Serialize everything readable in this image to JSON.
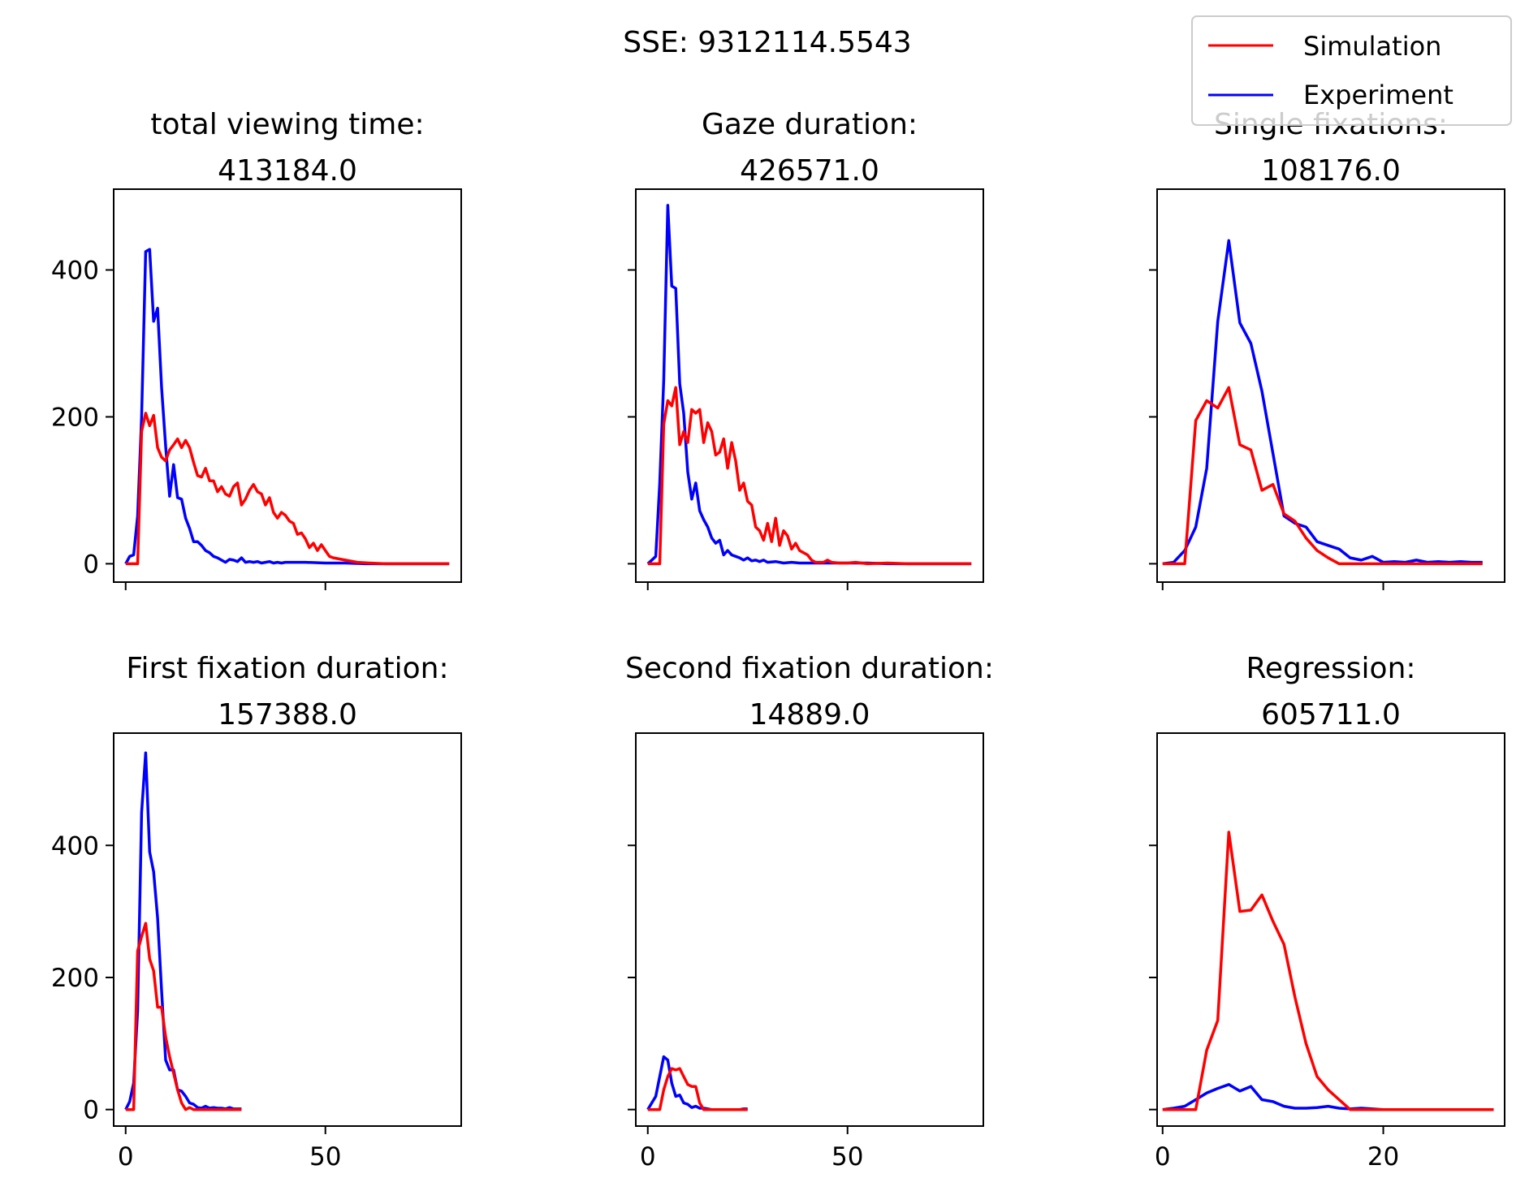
{
  "figure": {
    "suptitle": "SSE: 9312114.5543"
  },
  "legend": {
    "placement": "top-right",
    "entries": [
      {
        "label": "Simulation",
        "color": "#ff0000"
      },
      {
        "label": "Experiment",
        "color": "#0000ff"
      }
    ]
  },
  "chart_data": [
    {
      "type": "line",
      "title": "total viewing time:\n413184.0",
      "xlim": [
        -3,
        84
      ],
      "ylim": [
        -25,
        510
      ],
      "yticks": [
        0,
        200,
        400
      ],
      "xticks": [
        0,
        50
      ],
      "show_xticklabels": false,
      "show_yticklabels": true,
      "series": [
        {
          "name": "Experiment",
          "color": "#0000ff",
          "x": [
            0,
            1,
            2,
            3,
            4,
            5,
            6,
            7,
            8,
            9,
            10,
            11,
            12,
            13,
            14,
            15,
            16,
            17,
            18,
            19,
            20,
            21,
            22,
            23,
            24,
            25,
            26,
            27,
            28,
            29,
            30,
            31,
            32,
            33,
            34,
            35,
            36,
            37,
            38,
            39,
            40,
            45,
            50,
            55,
            60,
            65,
            70,
            75,
            81
          ],
          "y": [
            0,
            10,
            12,
            65,
            200,
            425,
            428,
            330,
            348,
            240,
            160,
            92,
            135,
            90,
            88,
            62,
            48,
            30,
            30,
            25,
            18,
            15,
            10,
            8,
            5,
            2,
            6,
            5,
            3,
            8,
            2,
            3,
            2,
            3,
            1,
            2,
            3,
            1,
            2,
            1,
            2,
            2,
            1,
            1,
            0,
            0,
            0,
            0,
            0
          ]
        },
        {
          "name": "Simulation",
          "color": "#ff0000",
          "x": [
            0,
            1,
            2,
            3,
            4,
            5,
            6,
            7,
            8,
            9,
            10,
            11,
            12,
            13,
            14,
            15,
            16,
            17,
            18,
            19,
            20,
            21,
            22,
            23,
            24,
            25,
            26,
            27,
            28,
            29,
            30,
            31,
            32,
            33,
            34,
            35,
            36,
            37,
            38,
            39,
            40,
            41,
            42,
            43,
            44,
            45,
            46,
            47,
            48,
            49,
            50,
            51,
            52,
            55,
            58,
            61,
            65,
            70,
            75,
            81
          ],
          "y": [
            0,
            0,
            0,
            0,
            180,
            205,
            188,
            202,
            158,
            145,
            140,
            155,
            162,
            170,
            158,
            168,
            158,
            138,
            120,
            118,
            130,
            113,
            113,
            98,
            105,
            95,
            92,
            105,
            110,
            80,
            88,
            100,
            108,
            98,
            95,
            80,
            90,
            70,
            62,
            70,
            66,
            58,
            55,
            40,
            42,
            34,
            22,
            28,
            18,
            26,
            18,
            10,
            8,
            5,
            2,
            1,
            0,
            0,
            0,
            0
          ]
        }
      ]
    },
    {
      "type": "line",
      "title": "Gaze duration:\n426571.0",
      "xlim": [
        -3,
        84
      ],
      "ylim": [
        -25,
        510
      ],
      "yticks": [
        0,
        200,
        400
      ],
      "xticks": [
        0,
        50
      ],
      "show_xticklabels": false,
      "show_yticklabels": false,
      "series": [
        {
          "name": "Experiment",
          "color": "#0000ff",
          "x": [
            0,
            1,
            2,
            3,
            4,
            5,
            6,
            7,
            8,
            9,
            10,
            11,
            12,
            13,
            14,
            15,
            16,
            17,
            18,
            19,
            20,
            21,
            22,
            23,
            24,
            25,
            26,
            27,
            28,
            29,
            30,
            32,
            34,
            36,
            38,
            40,
            45,
            50,
            55,
            60,
            65,
            70,
            75,
            81
          ],
          "y": [
            0,
            5,
            10,
            110,
            250,
            488,
            378,
            375,
            245,
            205,
            125,
            88,
            110,
            72,
            60,
            50,
            35,
            28,
            32,
            12,
            18,
            12,
            10,
            8,
            5,
            8,
            4,
            5,
            3,
            5,
            2,
            3,
            1,
            2,
            1,
            1,
            1,
            1,
            1,
            0,
            0,
            0,
            0,
            0
          ]
        },
        {
          "name": "Simulation",
          "color": "#ff0000",
          "x": [
            0,
            1,
            2,
            3,
            4,
            5,
            6,
            7,
            8,
            9,
            10,
            11,
            12,
            13,
            14,
            15,
            16,
            17,
            18,
            19,
            20,
            21,
            22,
            23,
            24,
            25,
            26,
            27,
            28,
            29,
            30,
            31,
            32,
            33,
            34,
            35,
            36,
            37,
            38,
            39,
            40,
            41,
            42,
            43,
            44,
            45,
            46,
            48,
            50,
            52,
            55,
            60,
            65,
            70,
            75,
            81
          ],
          "y": [
            0,
            0,
            0,
            0,
            190,
            222,
            215,
            240,
            162,
            180,
            165,
            210,
            205,
            210,
            165,
            192,
            180,
            148,
            152,
            170,
            130,
            165,
            140,
            100,
            110,
            85,
            80,
            50,
            45,
            32,
            55,
            30,
            62,
            25,
            45,
            38,
            20,
            28,
            18,
            15,
            12,
            5,
            2,
            2,
            2,
            5,
            2,
            1,
            1,
            2,
            0,
            1,
            0,
            0,
            0,
            0
          ]
        }
      ]
    },
    {
      "type": "line",
      "title": "Single fixations:\n108176.0",
      "xlim": [
        -0.5,
        31
      ],
      "ylim": [
        -25,
        510
      ],
      "yticks": [
        0,
        200,
        400
      ],
      "xticks": [
        0,
        20
      ],
      "show_xticklabels": false,
      "show_yticklabels": false,
      "series": [
        {
          "name": "Experiment",
          "color": "#0000ff",
          "x": [
            0,
            1,
            2,
            3,
            4,
            5,
            6,
            7,
            8,
            9,
            10,
            11,
            12,
            13,
            14,
            15,
            16,
            17,
            18,
            19,
            20,
            21,
            22,
            23,
            24,
            25,
            26,
            27,
            28,
            29
          ],
          "y": [
            0,
            2,
            18,
            50,
            130,
            330,
            440,
            328,
            300,
            235,
            150,
            65,
            55,
            50,
            30,
            25,
            20,
            8,
            5,
            10,
            2,
            3,
            2,
            5,
            2,
            3,
            2,
            3,
            2,
            2
          ]
        },
        {
          "name": "Simulation",
          "color": "#ff0000",
          "x": [
            0,
            1,
            2,
            3,
            4,
            5,
            6,
            7,
            8,
            9,
            10,
            11,
            12,
            13,
            14,
            15,
            16,
            17,
            18,
            19,
            20,
            21,
            22,
            23,
            24,
            25,
            26,
            27,
            28,
            29
          ],
          "y": [
            0,
            0,
            0,
            195,
            222,
            212,
            240,
            162,
            155,
            100,
            108,
            68,
            58,
            35,
            18,
            8,
            0,
            0,
            0,
            0,
            0,
            0,
            0,
            0,
            0,
            0,
            0,
            0,
            0,
            0
          ]
        }
      ]
    },
    {
      "type": "line",
      "title": "First fixation duration:\n157388.0",
      "xlim": [
        -3,
        84
      ],
      "ylim": [
        -25,
        570
      ],
      "yticks": [
        0,
        200,
        400
      ],
      "xticks": [
        0,
        50
      ],
      "show_xticklabels": true,
      "show_yticklabels": true,
      "series": [
        {
          "name": "Experiment",
          "color": "#0000ff",
          "x": [
            0,
            1,
            2,
            3,
            4,
            5,
            6,
            7,
            8,
            9,
            10,
            11,
            12,
            13,
            14,
            15,
            16,
            17,
            18,
            19,
            20,
            21,
            22,
            23,
            24,
            25,
            26,
            27,
            28,
            29
          ],
          "y": [
            0,
            12,
            40,
            150,
            450,
            540,
            390,
            360,
            290,
            180,
            75,
            60,
            60,
            30,
            28,
            20,
            10,
            8,
            3,
            2,
            5,
            2,
            3,
            2,
            2,
            1,
            3,
            1,
            1,
            1
          ]
        },
        {
          "name": "Simulation",
          "color": "#ff0000",
          "x": [
            0,
            1,
            2,
            3,
            4,
            5,
            6,
            7,
            8,
            9,
            10,
            11,
            12,
            13,
            14,
            15,
            16,
            17,
            18,
            19,
            20,
            21,
            22,
            23,
            24,
            25,
            26,
            27,
            28,
            29
          ],
          "y": [
            0,
            0,
            0,
            240,
            262,
            282,
            228,
            210,
            155,
            155,
            110,
            80,
            55,
            30,
            10,
            0,
            3,
            0,
            0,
            0,
            0,
            0,
            0,
            0,
            0,
            0,
            0,
            0,
            0,
            0
          ]
        }
      ]
    },
    {
      "type": "line",
      "title": "Second fixation duration:\n14889.0",
      "xlim": [
        -3,
        84
      ],
      "ylim": [
        -25,
        570
      ],
      "yticks": [
        0,
        200,
        400
      ],
      "xticks": [
        0,
        50
      ],
      "show_xticklabels": true,
      "show_yticklabels": false,
      "series": [
        {
          "name": "Experiment",
          "color": "#0000ff",
          "x": [
            0,
            1,
            2,
            3,
            4,
            5,
            6,
            7,
            8,
            9,
            10,
            11,
            12,
            13,
            14,
            15,
            16,
            17,
            18,
            19,
            20,
            21,
            22,
            23,
            24,
            25
          ],
          "y": [
            0,
            10,
            20,
            50,
            80,
            75,
            40,
            20,
            22,
            10,
            8,
            3,
            5,
            2,
            2,
            1,
            0,
            0,
            0,
            0,
            0,
            0,
            0,
            0,
            1,
            1
          ]
        },
        {
          "name": "Simulation",
          "color": "#ff0000",
          "x": [
            0,
            1,
            2,
            3,
            4,
            5,
            6,
            7,
            8,
            9,
            10,
            11,
            12,
            13,
            14,
            15,
            16,
            17,
            18,
            19,
            20,
            21,
            22,
            23,
            24,
            25
          ],
          "y": [
            0,
            0,
            0,
            0,
            30,
            50,
            62,
            60,
            62,
            50,
            38,
            35,
            35,
            10,
            0,
            0,
            0,
            0,
            0,
            0,
            0,
            0,
            0,
            0,
            0,
            0
          ]
        }
      ]
    },
    {
      "type": "line",
      "title": "Regression:\n605711.0",
      "xlim": [
        -0.5,
        31
      ],
      "ylim": [
        -25,
        570
      ],
      "yticks": [
        0,
        200,
        400
      ],
      "xticks": [
        0,
        20
      ],
      "show_xticklabels": true,
      "show_yticklabels": false,
      "series": [
        {
          "name": "Experiment",
          "color": "#0000ff",
          "x": [
            0,
            1,
            2,
            3,
            4,
            5,
            6,
            7,
            8,
            9,
            10,
            11,
            12,
            13,
            14,
            15,
            16,
            17,
            18,
            19,
            20,
            21,
            22,
            23,
            24,
            25,
            26,
            27,
            28,
            29,
            30
          ],
          "y": [
            0,
            2,
            5,
            15,
            25,
            32,
            38,
            28,
            35,
            15,
            12,
            5,
            2,
            2,
            3,
            5,
            2,
            1,
            2,
            1,
            0,
            0,
            0,
            0,
            0,
            0,
            0,
            0,
            0,
            0,
            0
          ]
        },
        {
          "name": "Simulation",
          "color": "#ff0000",
          "x": [
            0,
            1,
            2,
            3,
            4,
            5,
            6,
            7,
            8,
            9,
            10,
            11,
            12,
            13,
            14,
            15,
            16,
            17,
            18,
            19,
            20,
            21,
            22,
            23,
            24,
            25,
            26,
            27,
            28,
            29,
            30
          ],
          "y": [
            0,
            0,
            0,
            0,
            90,
            135,
            420,
            300,
            302,
            325,
            285,
            250,
            170,
            100,
            50,
            30,
            15,
            0,
            0,
            0,
            0,
            0,
            0,
            0,
            0,
            0,
            0,
            0,
            0,
            0,
            0
          ]
        }
      ]
    }
  ]
}
